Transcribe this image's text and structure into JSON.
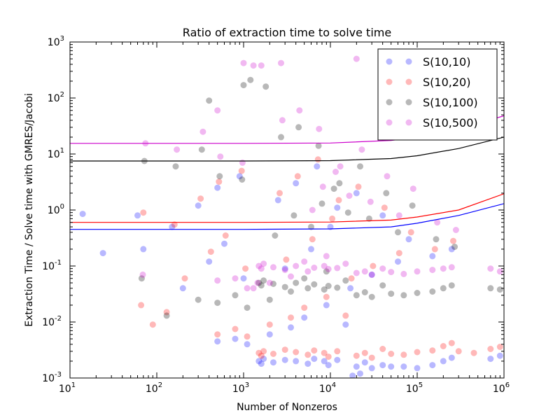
{
  "chart_data": {
    "type": "scatter",
    "title": "Ratio of extraction time to solve time",
    "xlabel": "Number of Nonzeros",
    "ylabel": "Extraction Time / Solve time with GMRES/Jacobi",
    "xscale": "log",
    "yscale": "log",
    "xlim": [
      10,
      1000000
    ],
    "ylim": [
      0.001,
      1000
    ],
    "x_ticks": [
      {
        "value": 10,
        "base": "10",
        "exp": "1"
      },
      {
        "value": 100,
        "base": "10",
        "exp": "2"
      },
      {
        "value": 1000,
        "base": "10",
        "exp": "3"
      },
      {
        "value": 10000,
        "base": "10",
        "exp": "4"
      },
      {
        "value": 100000,
        "base": "10",
        "exp": "5"
      },
      {
        "value": 1000000,
        "base": "10",
        "exp": "6"
      }
    ],
    "y_ticks": [
      {
        "value": 0.001,
        "base": "10",
        "exp": "-3"
      },
      {
        "value": 0.01,
        "base": "10",
        "exp": "-2"
      },
      {
        "value": 0.1,
        "base": "10",
        "exp": "-1"
      },
      {
        "value": 1,
        "base": "10",
        "exp": "0"
      },
      {
        "value": 10,
        "base": "10",
        "exp": "1"
      },
      {
        "value": 100,
        "base": "10",
        "exp": "2"
      },
      {
        "value": 1000,
        "base": "10",
        "exp": "3"
      }
    ],
    "legend_position": "top-right",
    "series": [
      {
        "name": "S(10,10)",
        "color": "#0000ff",
        "fit_line": [
          [
            10,
            0.45
          ],
          [
            1000,
            0.45
          ],
          [
            10000,
            0.46
          ],
          [
            50000,
            0.5
          ],
          [
            100000,
            0.58
          ],
          [
            300000,
            0.8
          ],
          [
            1000000,
            1.3
          ]
        ],
        "points": [
          [
            1500,
            0.002
          ],
          [
            1600,
            0.0018
          ],
          [
            1700,
            0.0022
          ],
          [
            2200,
            0.0019
          ],
          [
            3000,
            0.0021
          ],
          [
            4000,
            0.002
          ],
          [
            5500,
            0.0018
          ],
          [
            6500,
            0.0022
          ],
          [
            8500,
            0.002
          ],
          [
            9500,
            0.0017
          ],
          [
            12000,
            0.0021
          ],
          [
            20000,
            0.0016
          ],
          [
            25000,
            0.0019
          ],
          [
            30000,
            0.0015
          ],
          [
            40000,
            0.0017
          ],
          [
            50000,
            0.0016
          ],
          [
            70000,
            0.0016
          ],
          [
            100000,
            0.0015
          ],
          [
            150000,
            0.0017
          ],
          [
            200000,
            0.002
          ],
          [
            250000,
            0.0023
          ],
          [
            700000,
            0.0022
          ],
          [
            900000,
            0.0025
          ],
          [
            500,
            0.0045
          ],
          [
            800,
            0.005
          ],
          [
            1100,
            0.004
          ],
          [
            2000,
            0.006
          ],
          [
            3500,
            0.008
          ],
          [
            5000,
            0.012
          ],
          [
            9000,
            0.02
          ],
          [
            15000,
            0.009
          ],
          [
            18000,
            0.0011
          ],
          [
            22000,
            0.0012
          ],
          [
            60,
            0.8
          ],
          [
            70,
            0.2
          ],
          [
            150,
            0.5
          ],
          [
            300,
            1.2
          ],
          [
            500,
            2.5
          ],
          [
            900,
            4.0
          ],
          [
            2500,
            1.5
          ],
          [
            4000,
            3.0
          ],
          [
            7000,
            6.0
          ],
          [
            12000,
            1.1
          ],
          [
            20000,
            2.0
          ],
          [
            40000,
            0.8
          ],
          [
            80000,
            0.3
          ],
          [
            150000,
            0.15
          ],
          [
            250000,
            0.2
          ],
          [
            24,
            0.17
          ],
          [
            14,
            0.85
          ],
          [
            200,
            0.04
          ],
          [
            400,
            0.12
          ],
          [
            600,
            0.25
          ],
          [
            1000,
            0.06
          ],
          [
            3000,
            0.09
          ],
          [
            6000,
            0.2
          ],
          [
            10000,
            0.5
          ],
          [
            17000,
            0.04
          ],
          [
            30000,
            0.07
          ],
          [
            60000,
            0.12
          ]
        ]
      },
      {
        "name": "S(10,20)",
        "color": "#ff0000",
        "fit_line": [
          [
            10,
            0.6
          ],
          [
            1000,
            0.6
          ],
          [
            10000,
            0.61
          ],
          [
            50000,
            0.66
          ],
          [
            100000,
            0.75
          ],
          [
            300000,
            1.0
          ],
          [
            1000000,
            1.95
          ]
        ],
        "points": [
          [
            1500,
            0.0028
          ],
          [
            1600,
            0.0025
          ],
          [
            1700,
            0.003
          ],
          [
            2200,
            0.0027
          ],
          [
            3000,
            0.0032
          ],
          [
            4000,
            0.0029
          ],
          [
            5500,
            0.0026
          ],
          [
            6500,
            0.0031
          ],
          [
            8500,
            0.0028
          ],
          [
            9500,
            0.0024
          ],
          [
            12000,
            0.003
          ],
          [
            20000,
            0.0025
          ],
          [
            25000,
            0.0028
          ],
          [
            30000,
            0.0023
          ],
          [
            40000,
            0.0033
          ],
          [
            50000,
            0.0027
          ],
          [
            70000,
            0.0026
          ],
          [
            100000,
            0.0029
          ],
          [
            150000,
            0.0031
          ],
          [
            200000,
            0.0037
          ],
          [
            250000,
            0.0042
          ],
          [
            700000,
            0.0033
          ],
          [
            900000,
            0.0036
          ],
          [
            500,
            0.006
          ],
          [
            800,
            0.0075
          ],
          [
            1100,
            0.0055
          ],
          [
            2000,
            0.009
          ],
          [
            3500,
            0.012
          ],
          [
            5000,
            0.018
          ],
          [
            9000,
            0.028
          ],
          [
            15000,
            0.013
          ],
          [
            66,
            0.02
          ],
          [
            90,
            0.009
          ],
          [
            70,
            0.9
          ],
          [
            160,
            0.55
          ],
          [
            320,
            1.6
          ],
          [
            520,
            3.2
          ],
          [
            950,
            5.0
          ],
          [
            2600,
            2.0
          ],
          [
            4200,
            4.0
          ],
          [
            7200,
            8.0
          ],
          [
            12500,
            1.5
          ],
          [
            21000,
            2.6
          ],
          [
            42000,
            1.1
          ],
          [
            85000,
            0.4
          ],
          [
            160000,
            0.2
          ],
          [
            260000,
            0.28
          ],
          [
            210,
            0.06
          ],
          [
            420,
            0.18
          ],
          [
            620,
            0.35
          ],
          [
            1050,
            0.09
          ],
          [
            3100,
            0.13
          ],
          [
            6200,
            0.3
          ],
          [
            10500,
            0.7
          ],
          [
            17500,
            0.06
          ],
          [
            31000,
            0.1
          ],
          [
            62000,
            0.17
          ],
          [
            300000,
            0.003
          ],
          [
            450000,
            0.0028
          ],
          [
            130,
            0.015
          ]
        ]
      },
      {
        "name": "S(10,100)",
        "color": "#000000",
        "fit_line": [
          [
            10,
            7.5
          ],
          [
            1000,
            7.5
          ],
          [
            10000,
            7.6
          ],
          [
            50000,
            8.3
          ],
          [
            100000,
            9.3
          ],
          [
            300000,
            12.5
          ],
          [
            1000000,
            20
          ]
        ],
        "points": [
          [
            1500,
            0.05
          ],
          [
            1600,
            0.045
          ],
          [
            1700,
            0.055
          ],
          [
            2200,
            0.048
          ],
          [
            3000,
            0.042
          ],
          [
            4000,
            0.05
          ],
          [
            5500,
            0.04
          ],
          [
            6500,
            0.047
          ],
          [
            8500,
            0.038
          ],
          [
            9500,
            0.044
          ],
          [
            12000,
            0.041
          ],
          [
            20000,
            0.03
          ],
          [
            25000,
            0.034
          ],
          [
            30000,
            0.028
          ],
          [
            40000,
            0.045
          ],
          [
            50000,
            0.032
          ],
          [
            70000,
            0.03
          ],
          [
            100000,
            0.033
          ],
          [
            150000,
            0.035
          ],
          [
            200000,
            0.04
          ],
          [
            250000,
            0.045
          ],
          [
            700000,
            0.04
          ],
          [
            900000,
            0.038
          ],
          [
            500,
            0.022
          ],
          [
            800,
            0.03
          ],
          [
            1100,
            0.018
          ],
          [
            2000,
            0.025
          ],
          [
            3500,
            0.035
          ],
          [
            5000,
            0.06
          ],
          [
            9000,
            0.08
          ],
          [
            15000,
            0.055
          ],
          [
            67,
            0.06
          ],
          [
            130,
            0.013
          ],
          [
            300,
            0.025
          ],
          [
            72,
            7.5
          ],
          [
            165,
            6.0
          ],
          [
            330,
            12.0
          ],
          [
            530,
            4.0
          ],
          [
            960,
            3.5
          ],
          [
            2700,
            20.0
          ],
          [
            4300,
            30.0
          ],
          [
            7300,
            14.0
          ],
          [
            12700,
            3.0
          ],
          [
            22000,
            6.0
          ],
          [
            44000,
            2.0
          ],
          [
            88000,
            1.2
          ],
          [
            165000,
            0.3
          ],
          [
            270000,
            0.22
          ],
          [
            1000,
            170
          ],
          [
            1200,
            210
          ],
          [
            1800,
            160
          ],
          [
            400,
            90
          ],
          [
            6000,
            0.5
          ],
          [
            8000,
            1.3
          ],
          [
            11000,
            2.4
          ],
          [
            16000,
            0.9
          ],
          [
            28000,
            0.7
          ],
          [
            60000,
            0.4
          ],
          [
            3800,
            0.8
          ],
          [
            2300,
            0.35
          ]
        ]
      },
      {
        "name": "S(10,500)",
        "color": "#cc00cc",
        "fit_line": [
          [
            10,
            15.5
          ],
          [
            1000,
            15.5
          ],
          [
            10000,
            15.7
          ],
          [
            50000,
            17.5
          ],
          [
            100000,
            20
          ],
          [
            300000,
            28
          ],
          [
            1000000,
            48
          ]
        ],
        "points": [
          [
            1500,
            0.1
          ],
          [
            1600,
            0.09
          ],
          [
            1700,
            0.11
          ],
          [
            2200,
            0.095
          ],
          [
            3000,
            0.085
          ],
          [
            4000,
            0.1
          ],
          [
            5500,
            0.08
          ],
          [
            6500,
            0.093
          ],
          [
            8500,
            0.1
          ],
          [
            9500,
            0.088
          ],
          [
            12000,
            0.092
          ],
          [
            20000,
            0.075
          ],
          [
            25000,
            0.08
          ],
          [
            30000,
            0.07
          ],
          [
            40000,
            0.09
          ],
          [
            50000,
            0.078
          ],
          [
            70000,
            0.072
          ],
          [
            100000,
            0.08
          ],
          [
            150000,
            0.085
          ],
          [
            200000,
            0.09
          ],
          [
            250000,
            0.095
          ],
          [
            700000,
            0.09
          ],
          [
            900000,
            0.08
          ],
          [
            500,
            0.055
          ],
          [
            800,
            0.06
          ],
          [
            1100,
            0.04
          ],
          [
            2000,
            0.05
          ],
          [
            3500,
            0.065
          ],
          [
            5000,
            0.12
          ],
          [
            9000,
            0.15
          ],
          [
            15000,
            0.11
          ],
          [
            69,
            0.07
          ],
          [
            1300,
            0.04
          ],
          [
            1450,
            0.05
          ],
          [
            74,
            15.5
          ],
          [
            170,
            12.0
          ],
          [
            340,
            25.0
          ],
          [
            540,
            9.0
          ],
          [
            970,
            7.0
          ],
          [
            2800,
            40.0
          ],
          [
            4400,
            60.0
          ],
          [
            7400,
            28.0
          ],
          [
            13000,
            6.0
          ],
          [
            23000,
            12.0
          ],
          [
            45000,
            4.0
          ],
          [
            90000,
            2.4
          ],
          [
            170000,
            0.6
          ],
          [
            280000,
            0.44
          ],
          [
            1000,
            420
          ],
          [
            1300,
            380
          ],
          [
            2700,
            420
          ],
          [
            20000,
            500
          ],
          [
            1600,
            380
          ],
          [
            500,
            60
          ],
          [
            6200,
            1.0
          ],
          [
            8200,
            2.6
          ],
          [
            11500,
            4.8
          ],
          [
            16500,
            1.8
          ],
          [
            29000,
            1.4
          ],
          [
            62000,
            0.8
          ]
        ]
      }
    ]
  }
}
